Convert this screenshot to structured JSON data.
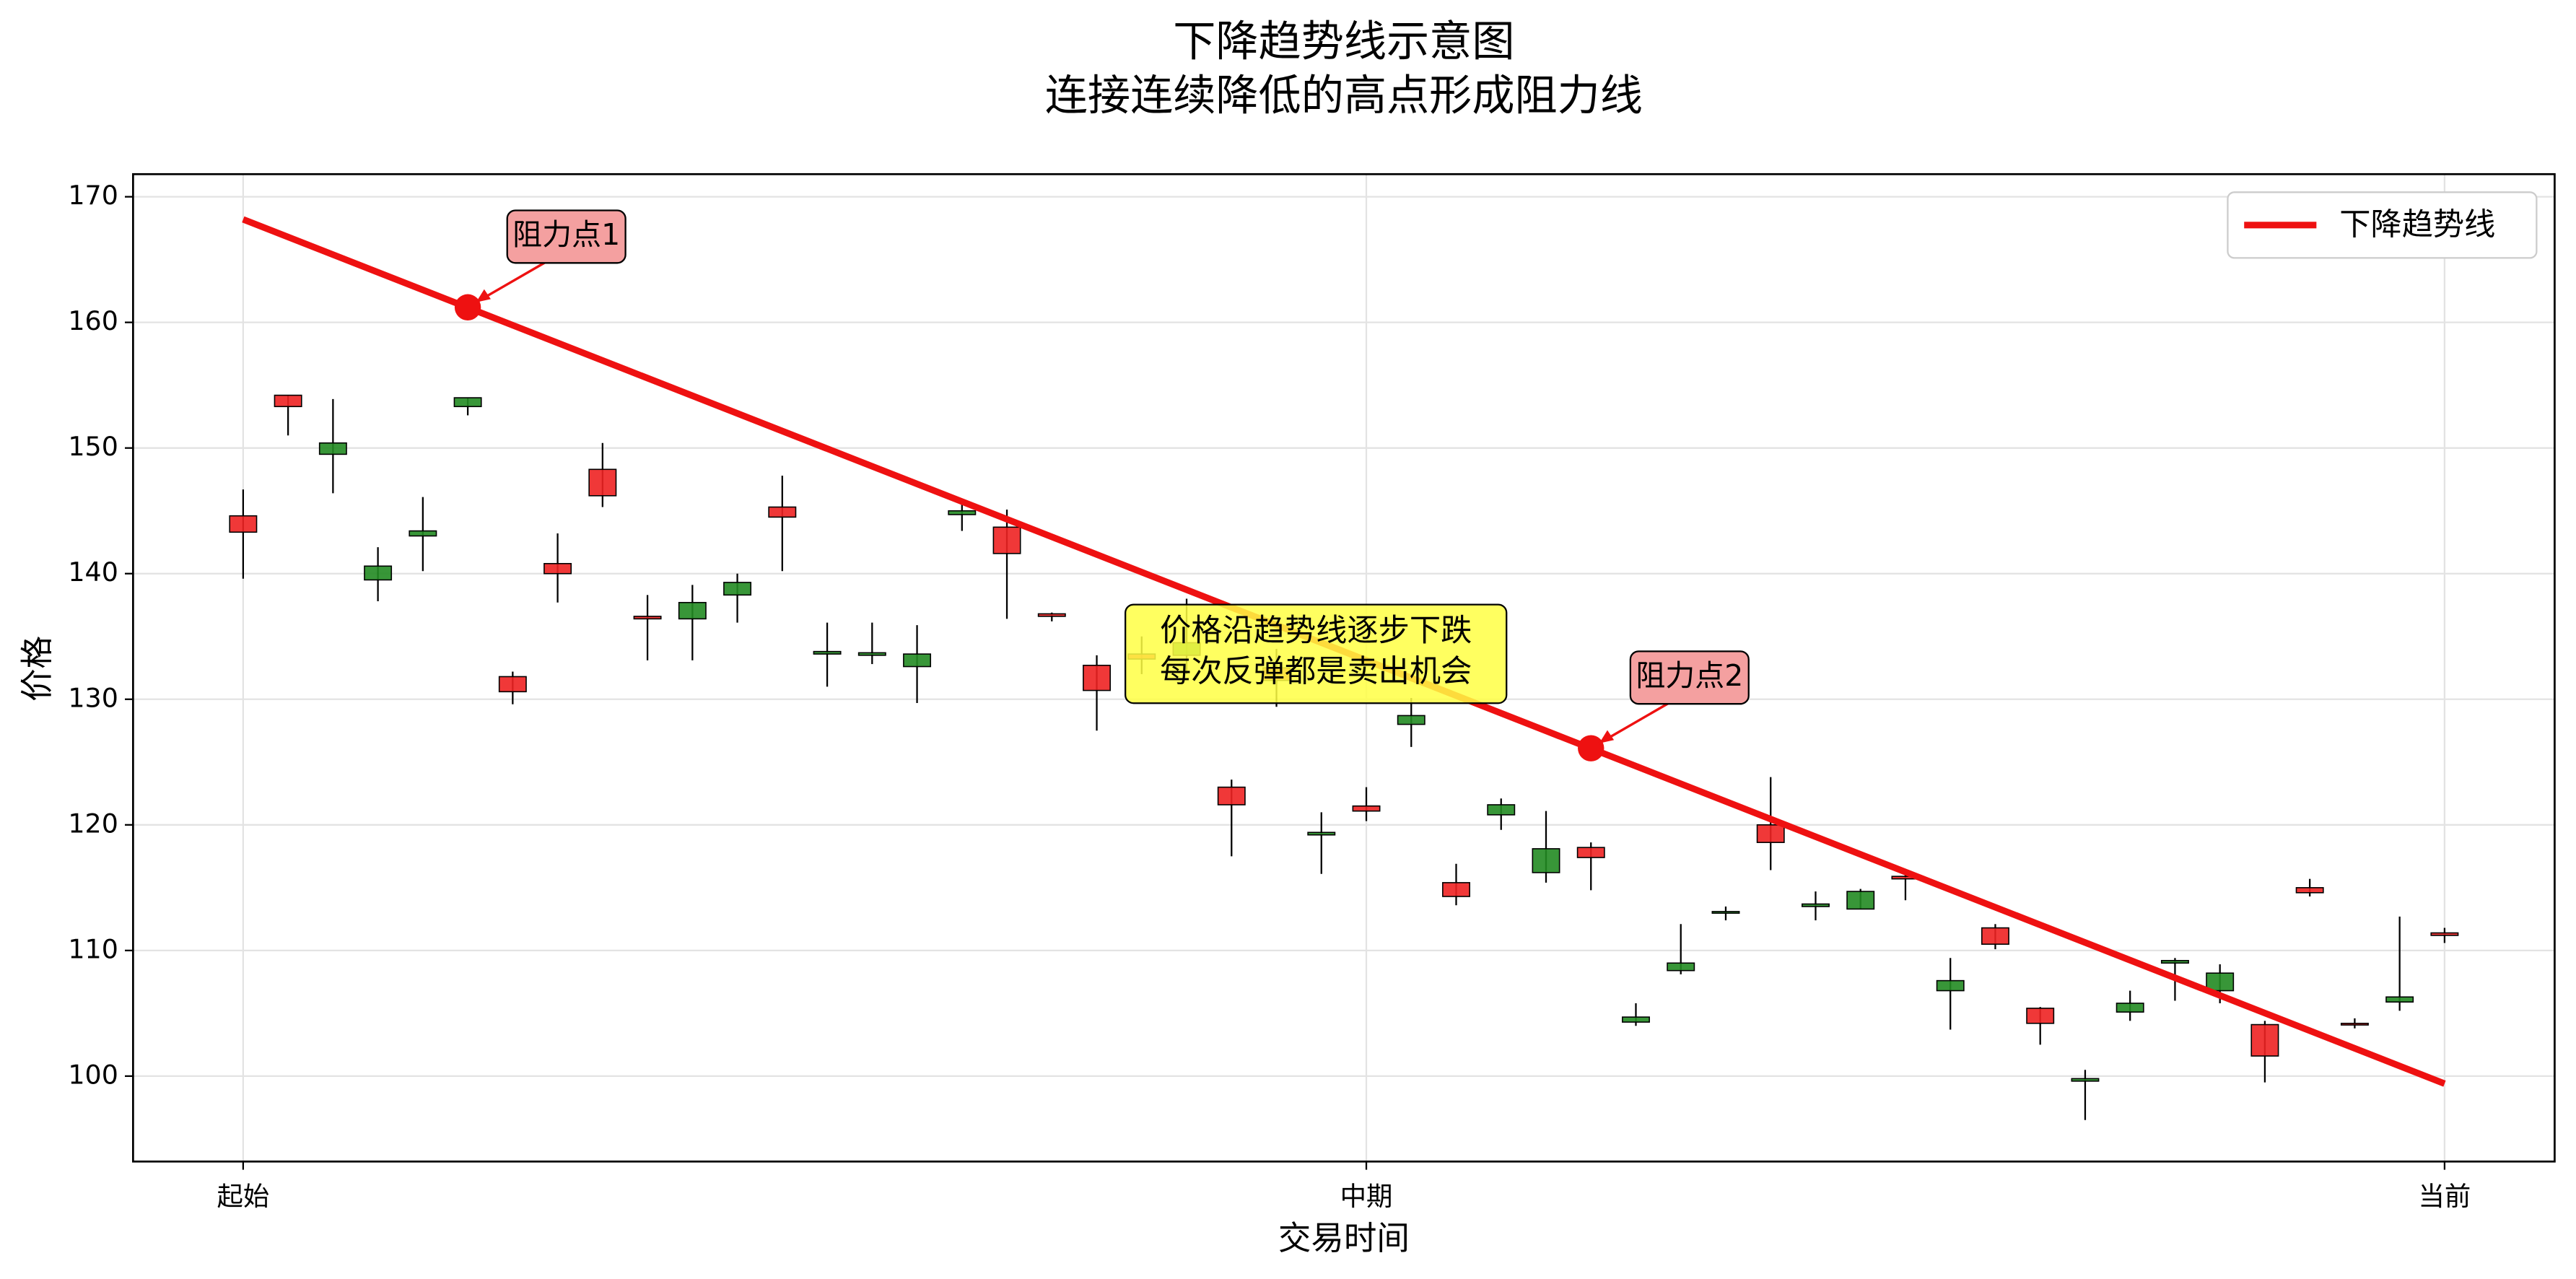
{
  "chart_data": {
    "type": "candlestick",
    "title": "下降趋势线示意图",
    "subtitle": "连接连续降低的高点形成阻力线",
    "x_label": "交易时间",
    "y_label": "价格",
    "xlim": [
      -2.45,
      51.45
    ],
    "ylim": [
      93.2,
      171.8
    ],
    "xticks": [
      {
        "value": 0,
        "label": "起始"
      },
      {
        "value": 25,
        "label": "中期"
      },
      {
        "value": 49,
        "label": "当前"
      }
    ],
    "yticks": [
      100,
      110,
      120,
      130,
      140,
      150,
      160,
      170
    ],
    "grid": true,
    "up_color": "#ee2222",
    "down_color": "#228b22",
    "x": [
      0,
      1,
      2,
      3,
      4,
      5,
      6,
      7,
      8,
      9,
      10,
      11,
      12,
      13,
      14,
      15,
      16,
      17,
      18,
      19,
      20,
      21,
      22,
      23,
      24,
      25,
      26,
      27,
      28,
      29,
      30,
      31,
      32,
      33,
      34,
      35,
      36,
      37,
      38,
      39,
      40,
      41,
      42,
      43,
      44,
      45,
      46,
      47,
      48,
      49
    ],
    "open": [
      143.3,
      153.3,
      150.4,
      140.6,
      143.4,
      154.0,
      130.6,
      140.0,
      146.2,
      136.4,
      137.7,
      139.3,
      144.5,
      133.8,
      133.7,
      133.6,
      145.0,
      141.6,
      136.6,
      130.7,
      133.2,
      134.5,
      121.6,
      131.5,
      119.4,
      121.1,
      128.7,
      114.3,
      121.6,
      118.1,
      117.4,
      104.7,
      109.0,
      113.1,
      118.6,
      113.7,
      114.7,
      115.7,
      107.6,
      110.5,
      104.2,
      99.8,
      105.8,
      109.2,
      108.2,
      101.6,
      114.6,
      104.1,
      106.3,
      111.2
    ],
    "high": [
      146.7,
      154.2,
      153.9,
      142.1,
      146.1,
      154.0,
      132.2,
      143.2,
      150.4,
      138.3,
      139.1,
      140.0,
      147.8,
      136.1,
      136.1,
      135.9,
      145.5,
      145.1,
      136.9,
      133.5,
      135.0,
      138.0,
      123.6,
      134.0,
      121.0,
      123.0,
      130.1,
      116.9,
      122.1,
      121.1,
      118.6,
      105.8,
      112.1,
      113.5,
      123.8,
      114.7,
      114.9,
      116.3,
      109.4,
      112.1,
      105.5,
      100.5,
      106.8,
      109.4,
      108.9,
      104.4,
      115.7,
      104.6,
      112.7,
      111.8
    ],
    "low": [
      139.6,
      151.0,
      146.4,
      137.8,
      140.2,
      152.6,
      129.6,
      137.7,
      145.3,
      133.1,
      133.1,
      136.1,
      140.2,
      131.0,
      132.8,
      129.7,
      143.4,
      136.4,
      136.2,
      127.5,
      132.0,
      132.0,
      117.5,
      129.4,
      116.1,
      120.3,
      126.2,
      113.6,
      119.6,
      115.4,
      114.8,
      104.0,
      108.1,
      112.4,
      116.4,
      112.4,
      113.3,
      114.0,
      103.7,
      110.1,
      102.5,
      96.5,
      104.4,
      106.0,
      105.8,
      99.5,
      114.3,
      103.8,
      105.2,
      110.6
    ],
    "close": [
      144.6,
      154.2,
      149.5,
      139.5,
      143.0,
      153.3,
      131.8,
      140.8,
      148.3,
      136.6,
      136.4,
      138.3,
      145.3,
      133.6,
      133.5,
      132.6,
      144.7,
      143.7,
      136.8,
      132.7,
      133.6,
      133.5,
      123.0,
      132.5,
      119.2,
      121.5,
      128.0,
      115.4,
      120.8,
      116.2,
      118.2,
      104.3,
      108.4,
      113.0,
      120.0,
      113.5,
      113.3,
      115.9,
      106.8,
      111.8,
      105.4,
      99.6,
      105.1,
      109.0,
      106.8,
      104.1,
      115.0,
      104.2,
      105.9,
      111.4
    ],
    "trendline": {
      "name": "下降趋势线",
      "color": "#ee1111",
      "x": [
        0,
        49
      ],
      "y": [
        168.2,
        99.4
      ]
    },
    "resistance_points": [
      {
        "label": "阻力点1",
        "x": 5,
        "y": 161.2
      },
      {
        "label": "阻力点2",
        "x": 30,
        "y": 126.1
      }
    ],
    "note_lines": [
      "价格沿趋势线逐步下跌",
      "每次反弹都是卖出机会"
    ],
    "legend_position": "upper right"
  }
}
